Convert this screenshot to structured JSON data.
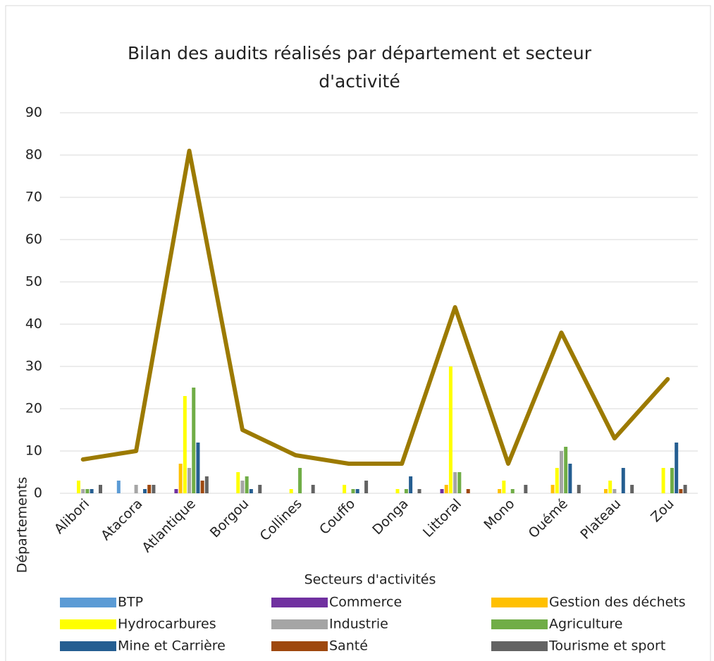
{
  "chart_data": {
    "type": "bar",
    "title": "Bilan des audits réalisés par département et secteur d'activité",
    "x_label": "Secteurs d'activités",
    "y_label": "Départements",
    "categories": [
      "Alibori",
      "Atacora",
      "Atlantique",
      "Borgou",
      "Collines",
      "Couffo",
      "Donga",
      "Littoral",
      "Mono",
      "Ouémé",
      "Plateau",
      "Zou"
    ],
    "series": [
      {
        "name": "BTP",
        "color": "#5b9bd5",
        "values": [
          0,
          3,
          0,
          0,
          0,
          0,
          0,
          0,
          0,
          0,
          0,
          0
        ]
      },
      {
        "name": "Commerce",
        "color": "#7030a0",
        "values": [
          0,
          0,
          1,
          0,
          0,
          0,
          0,
          1,
          0,
          0,
          0,
          0
        ]
      },
      {
        "name": "Gestion des déchets",
        "color": "#ffc000",
        "values": [
          0,
          0,
          7,
          0,
          0,
          0,
          0,
          2,
          1,
          2,
          1,
          0
        ]
      },
      {
        "name": "Hydrocarbures",
        "color": "#ffff00",
        "values": [
          3,
          0,
          23,
          5,
          1,
          2,
          1,
          30,
          3,
          6,
          3,
          6
        ]
      },
      {
        "name": "Industrie",
        "color": "#a5a5a5",
        "values": [
          1,
          2,
          6,
          3,
          0,
          0,
          0,
          5,
          0,
          10,
          1,
          0
        ]
      },
      {
        "name": "Agriculture",
        "color": "#70ad47",
        "values": [
          1,
          0,
          25,
          4,
          6,
          1,
          1,
          5,
          1,
          11,
          0,
          6
        ]
      },
      {
        "name": "Mine et Carrière",
        "color": "#255e91",
        "values": [
          1,
          1,
          12,
          1,
          0,
          1,
          4,
          0,
          0,
          7,
          6,
          12
        ]
      },
      {
        "name": "Santé",
        "color": "#9e480e",
        "values": [
          0,
          2,
          3,
          0,
          0,
          0,
          0,
          1,
          0,
          0,
          0,
          1
        ]
      },
      {
        "name": "Tourisme et sport",
        "color": "#636363",
        "values": [
          2,
          2,
          4,
          2,
          2,
          3,
          1,
          0,
          2,
          2,
          2,
          2
        ]
      },
      {
        "type": "line",
        "color": "#9c7a00",
        "values": [
          8,
          10,
          81,
          15,
          9,
          7,
          7,
          44,
          7,
          38,
          13,
          27
        ]
      }
    ],
    "ylim": [
      0,
      90
    ],
    "yticks": [
      0,
      10,
      20,
      30,
      40,
      50,
      60,
      70,
      80,
      90
    ],
    "grid": true
  }
}
